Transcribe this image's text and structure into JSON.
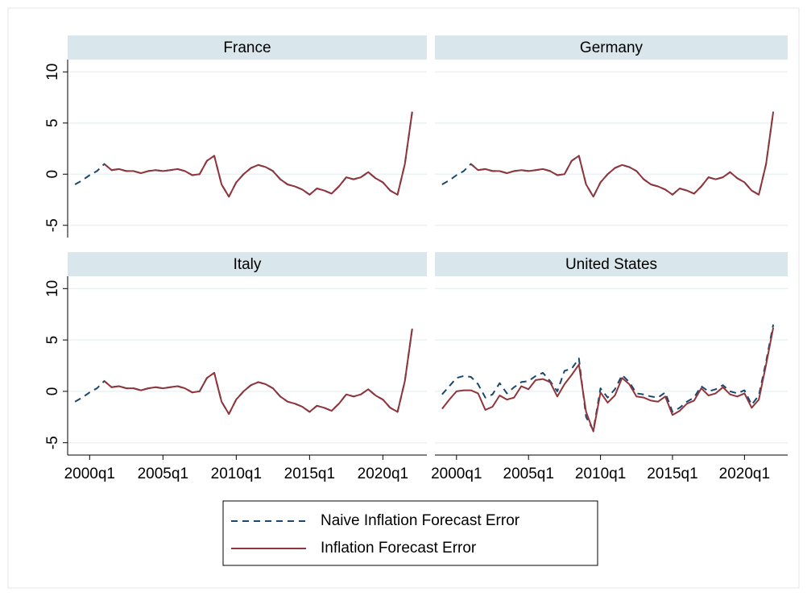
{
  "chart_data": [
    {
      "type": "line",
      "title": "France",
      "x": [
        "1999q1",
        "1999q3",
        "2000q1",
        "2000q3",
        "2001q1",
        "2001q3",
        "2002q1",
        "2002q3",
        "2003q1",
        "2003q3",
        "2004q1",
        "2004q3",
        "2005q1",
        "2005q3",
        "2006q1",
        "2006q3",
        "2007q1",
        "2007q3",
        "2008q1",
        "2008q3",
        "2009q1",
        "2009q3",
        "2010q1",
        "2010q3",
        "2011q1",
        "2011q3",
        "2012q1",
        "2012q3",
        "2013q1",
        "2013q3",
        "2014q1",
        "2014q3",
        "2015q1",
        "2015q3",
        "2016q1",
        "2016q3",
        "2017q1",
        "2017q3",
        "2018q1",
        "2018q3",
        "2019q1",
        "2019q3",
        "2020q1",
        "2020q3",
        "2021q1",
        "2021q3",
        "2022q1"
      ],
      "series": [
        {
          "name": "Naive Inflation Forecast Error",
          "color": "#1a476f",
          "dashed": true,
          "values": [
            -1.0,
            -0.6,
            -0.1,
            0.3,
            1.0,
            0.4,
            0.5,
            0.3,
            0.3,
            0.1,
            0.3,
            0.4,
            0.3,
            0.4,
            0.5,
            0.3,
            -0.1,
            0.0,
            1.3,
            1.8,
            -1.0,
            -2.2,
            -0.8,
            0.0,
            0.6,
            0.9,
            0.7,
            0.3,
            -0.5,
            -1.0,
            -1.2,
            -1.5,
            -2.0,
            -1.4,
            -1.6,
            -1.9,
            -1.2,
            -0.3,
            -0.5,
            -0.3,
            0.2,
            -0.4,
            -0.8,
            -1.6,
            -2.0,
            1.0,
            6.1
          ]
        },
        {
          "name": "Inflation Forecast Error",
          "color": "#90353b",
          "dashed": false,
          "values": [
            null,
            null,
            null,
            null,
            1.0,
            0.4,
            0.5,
            0.3,
            0.3,
            0.1,
            0.3,
            0.4,
            0.3,
            0.4,
            0.5,
            0.3,
            -0.1,
            0.0,
            1.3,
            1.8,
            -1.0,
            -2.2,
            -0.8,
            0.0,
            0.6,
            0.9,
            0.7,
            0.3,
            -0.5,
            -1.0,
            -1.2,
            -1.5,
            -2.0,
            -1.4,
            -1.6,
            -1.9,
            -1.2,
            -0.3,
            -0.5,
            -0.3,
            0.2,
            -0.4,
            -0.8,
            -1.6,
            -2.0,
            1.0,
            6.1
          ]
        }
      ],
      "xlim": [
        "1998q3",
        "2023q1"
      ],
      "ylim": [
        -6.2,
        11.2
      ],
      "yticks": [
        -5,
        0,
        5,
        10
      ],
      "grid": true
    },
    {
      "type": "line",
      "title": "Germany",
      "x": [
        "1999q1",
        "1999q3",
        "2000q1",
        "2000q3",
        "2001q1",
        "2001q3",
        "2002q1",
        "2002q3",
        "2003q1",
        "2003q3",
        "2004q1",
        "2004q3",
        "2005q1",
        "2005q3",
        "2006q1",
        "2006q3",
        "2007q1",
        "2007q3",
        "2008q1",
        "2008q3",
        "2009q1",
        "2009q3",
        "2010q1",
        "2010q3",
        "2011q1",
        "2011q3",
        "2012q1",
        "2012q3",
        "2013q1",
        "2013q3",
        "2014q1",
        "2014q3",
        "2015q1",
        "2015q3",
        "2016q1",
        "2016q3",
        "2017q1",
        "2017q3",
        "2018q1",
        "2018q3",
        "2019q1",
        "2019q3",
        "2020q1",
        "2020q3",
        "2021q1",
        "2021q3",
        "2022q1"
      ],
      "series": [
        {
          "name": "Naive Inflation Forecast Error",
          "color": "#1a476f",
          "dashed": true,
          "values": [
            -1.0,
            -0.6,
            -0.1,
            0.3,
            1.0,
            0.4,
            0.5,
            0.3,
            0.3,
            0.1,
            0.3,
            0.4,
            0.3,
            0.4,
            0.5,
            0.3,
            -0.1,
            0.0,
            1.3,
            1.8,
            -1.0,
            -2.2,
            -0.8,
            0.0,
            0.6,
            0.9,
            0.7,
            0.3,
            -0.5,
            -1.0,
            -1.2,
            -1.5,
            -2.0,
            -1.4,
            -1.6,
            -1.9,
            -1.2,
            -0.3,
            -0.5,
            -0.3,
            0.2,
            -0.4,
            -0.8,
            -1.6,
            -2.0,
            1.0,
            6.1
          ]
        },
        {
          "name": "Inflation Forecast Error",
          "color": "#90353b",
          "dashed": false,
          "values": [
            null,
            null,
            null,
            null,
            1.0,
            0.4,
            0.5,
            0.3,
            0.3,
            0.1,
            0.3,
            0.4,
            0.3,
            0.4,
            0.5,
            0.3,
            -0.1,
            0.0,
            1.3,
            1.8,
            -1.0,
            -2.2,
            -0.8,
            0.0,
            0.6,
            0.9,
            0.7,
            0.3,
            -0.5,
            -1.0,
            -1.2,
            -1.5,
            -2.0,
            -1.4,
            -1.6,
            -1.9,
            -1.2,
            -0.3,
            -0.5,
            -0.3,
            0.2,
            -0.4,
            -0.8,
            -1.6,
            -2.0,
            1.0,
            6.1
          ]
        }
      ],
      "xlim": [
        "1998q3",
        "2023q1"
      ],
      "ylim": [
        -6.2,
        11.2
      ],
      "yticks": [
        -5,
        0,
        5,
        10
      ],
      "grid": true
    },
    {
      "type": "line",
      "title": "Italy",
      "x": [
        "1999q1",
        "1999q3",
        "2000q1",
        "2000q3",
        "2001q1",
        "2001q3",
        "2002q1",
        "2002q3",
        "2003q1",
        "2003q3",
        "2004q1",
        "2004q3",
        "2005q1",
        "2005q3",
        "2006q1",
        "2006q3",
        "2007q1",
        "2007q3",
        "2008q1",
        "2008q3",
        "2009q1",
        "2009q3",
        "2010q1",
        "2010q3",
        "2011q1",
        "2011q3",
        "2012q1",
        "2012q3",
        "2013q1",
        "2013q3",
        "2014q1",
        "2014q3",
        "2015q1",
        "2015q3",
        "2016q1",
        "2016q3",
        "2017q1",
        "2017q3",
        "2018q1",
        "2018q3",
        "2019q1",
        "2019q3",
        "2020q1",
        "2020q3",
        "2021q1",
        "2021q3",
        "2022q1"
      ],
      "series": [
        {
          "name": "Naive Inflation Forecast Error",
          "color": "#1a476f",
          "dashed": true,
          "values": [
            -1.0,
            -0.6,
            -0.1,
            0.3,
            1.0,
            0.4,
            0.5,
            0.3,
            0.3,
            0.1,
            0.3,
            0.4,
            0.3,
            0.4,
            0.5,
            0.3,
            -0.1,
            0.0,
            1.3,
            1.8,
            -1.0,
            -2.2,
            -0.8,
            0.0,
            0.6,
            0.9,
            0.7,
            0.3,
            -0.5,
            -1.0,
            -1.2,
            -1.5,
            -2.0,
            -1.4,
            -1.6,
            -1.9,
            -1.2,
            -0.3,
            -0.5,
            -0.3,
            0.2,
            -0.4,
            -0.8,
            -1.6,
            -2.0,
            1.0,
            6.1
          ]
        },
        {
          "name": "Inflation Forecast Error",
          "color": "#90353b",
          "dashed": false,
          "values": [
            null,
            null,
            null,
            null,
            1.0,
            0.4,
            0.5,
            0.3,
            0.3,
            0.1,
            0.3,
            0.4,
            0.3,
            0.4,
            0.5,
            0.3,
            -0.1,
            0.0,
            1.3,
            1.8,
            -1.0,
            -2.2,
            -0.8,
            0.0,
            0.6,
            0.9,
            0.7,
            0.3,
            -0.5,
            -1.0,
            -1.2,
            -1.5,
            -2.0,
            -1.4,
            -1.6,
            -1.9,
            -1.2,
            -0.3,
            -0.5,
            -0.3,
            0.2,
            -0.4,
            -0.8,
            -1.6,
            -2.0,
            1.0,
            6.1
          ]
        }
      ],
      "xlim": [
        "1998q3",
        "2023q1"
      ],
      "ylim": [
        -6.2,
        11.2
      ],
      "yticks": [
        -5,
        0,
        5,
        10
      ],
      "xticks": [
        "2000q1",
        "2005q1",
        "2010q1",
        "2015q1",
        "2020q1"
      ],
      "grid": true
    },
    {
      "type": "line",
      "title": "United States",
      "x": [
        "1999q1",
        "1999q3",
        "2000q1",
        "2000q3",
        "2001q1",
        "2001q3",
        "2002q1",
        "2002q3",
        "2003q1",
        "2003q3",
        "2004q1",
        "2004q3",
        "2005q1",
        "2005q3",
        "2006q1",
        "2006q3",
        "2007q1",
        "2007q3",
        "2008q1",
        "2008q3",
        "2009q1",
        "2009q3",
        "2010q1",
        "2010q3",
        "2011q1",
        "2011q3",
        "2012q1",
        "2012q3",
        "2013q1",
        "2013q3",
        "2014q1",
        "2014q3",
        "2015q1",
        "2015q3",
        "2016q1",
        "2016q3",
        "2017q1",
        "2017q3",
        "2018q1",
        "2018q3",
        "2019q1",
        "2019q3",
        "2020q1",
        "2020q3",
        "2021q1",
        "2021q3",
        "2022q1"
      ],
      "series": [
        {
          "name": "Naive Inflation Forecast Error",
          "color": "#1a476f",
          "dashed": true,
          "values": [
            -0.3,
            0.5,
            1.3,
            1.5,
            1.4,
            0.7,
            -0.6,
            -0.3,
            0.8,
            -0.2,
            0.4,
            0.9,
            1.0,
            1.5,
            1.8,
            1.0,
            0.0,
            2.0,
            2.2,
            3.2,
            -2.5,
            -3.8,
            0.3,
            -0.6,
            0.2,
            1.6,
            0.9,
            -0.2,
            -0.3,
            -0.5,
            -0.6,
            -0.1,
            -2.0,
            -1.6,
            -1.0,
            -0.6,
            0.5,
            0.0,
            0.2,
            0.6,
            0.0,
            -0.2,
            0.1,
            -1.3,
            -0.4,
            2.9,
            6.5
          ]
        },
        {
          "name": "Inflation Forecast Error",
          "color": "#90353b",
          "dashed": false,
          "values": [
            -1.7,
            -0.8,
            0.0,
            0.1,
            0.1,
            -0.2,
            -1.8,
            -1.5,
            -0.4,
            -0.8,
            -0.6,
            0.5,
            0.2,
            1.1,
            1.2,
            0.9,
            -0.5,
            0.7,
            1.6,
            2.6,
            -2.0,
            -3.9,
            -0.1,
            -1.1,
            -0.4,
            1.3,
            0.7,
            -0.5,
            -0.6,
            -0.9,
            -1.0,
            -0.5,
            -2.3,
            -1.9,
            -1.2,
            -0.9,
            0.3,
            -0.4,
            -0.2,
            0.4,
            -0.3,
            -0.5,
            -0.2,
            -1.6,
            -0.8,
            2.6,
            6.2
          ]
        }
      ],
      "xlim": [
        "1998q3",
        "2023q1"
      ],
      "ylim": [
        -6.2,
        11.2
      ],
      "yticks": [
        -5,
        0,
        5,
        10
      ],
      "xticks": [
        "2000q1",
        "2005q1",
        "2010q1",
        "2015q1",
        "2020q1"
      ],
      "grid": true
    }
  ]
}
